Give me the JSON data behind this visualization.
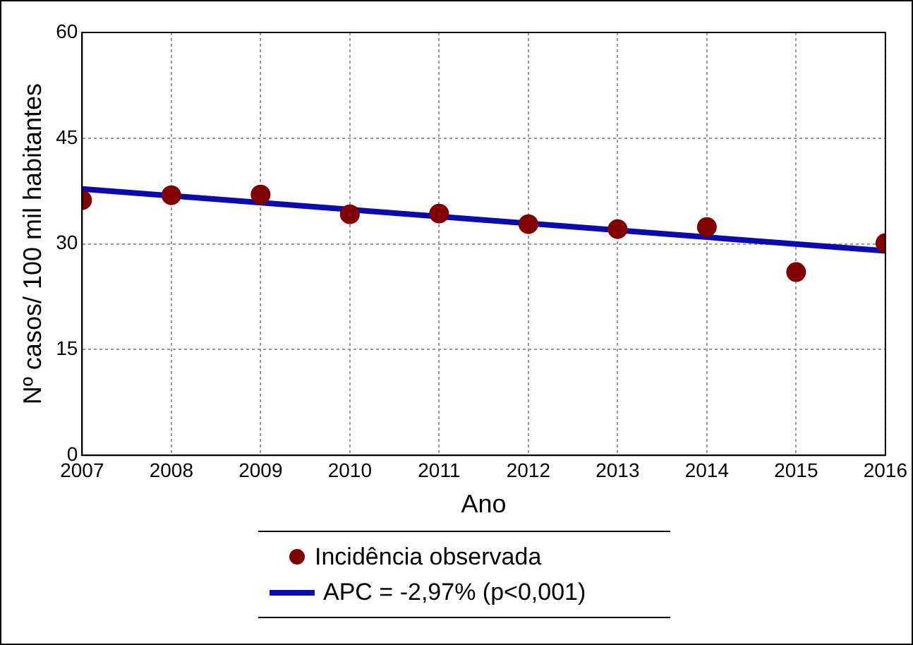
{
  "chart_data": {
    "type": "scatter",
    "xlabel": "Ano",
    "ylabel": "Nº casos/ 100 mil habitantes",
    "x": [
      2007,
      2008,
      2009,
      2010,
      2011,
      2012,
      2013,
      2014,
      2015,
      2016
    ],
    "xlim": [
      2007,
      2016
    ],
    "xticks": [
      2007,
      2008,
      2009,
      2010,
      2011,
      2012,
      2013,
      2014,
      2015,
      2016
    ],
    "ylim": [
      0,
      60
    ],
    "yticks": [
      0,
      15,
      30,
      45,
      60
    ],
    "grid": true,
    "legend": "bottom",
    "series": [
      {
        "name": "Incidência observada",
        "color": "#800000",
        "marker": "circle",
        "values": [
          36.2,
          36.9,
          37.0,
          34.2,
          34.3,
          32.8,
          32.1,
          32.4,
          26.0,
          30.1
        ]
      },
      {
        "name": "APC = -2,97% (p<0,001)",
        "type": "line",
        "color": "#0a0ab4",
        "marker": "none",
        "line_style": "solid",
        "x": [
          2007,
          2016
        ],
        "values": [
          37.8,
          29.0
        ]
      }
    ]
  }
}
